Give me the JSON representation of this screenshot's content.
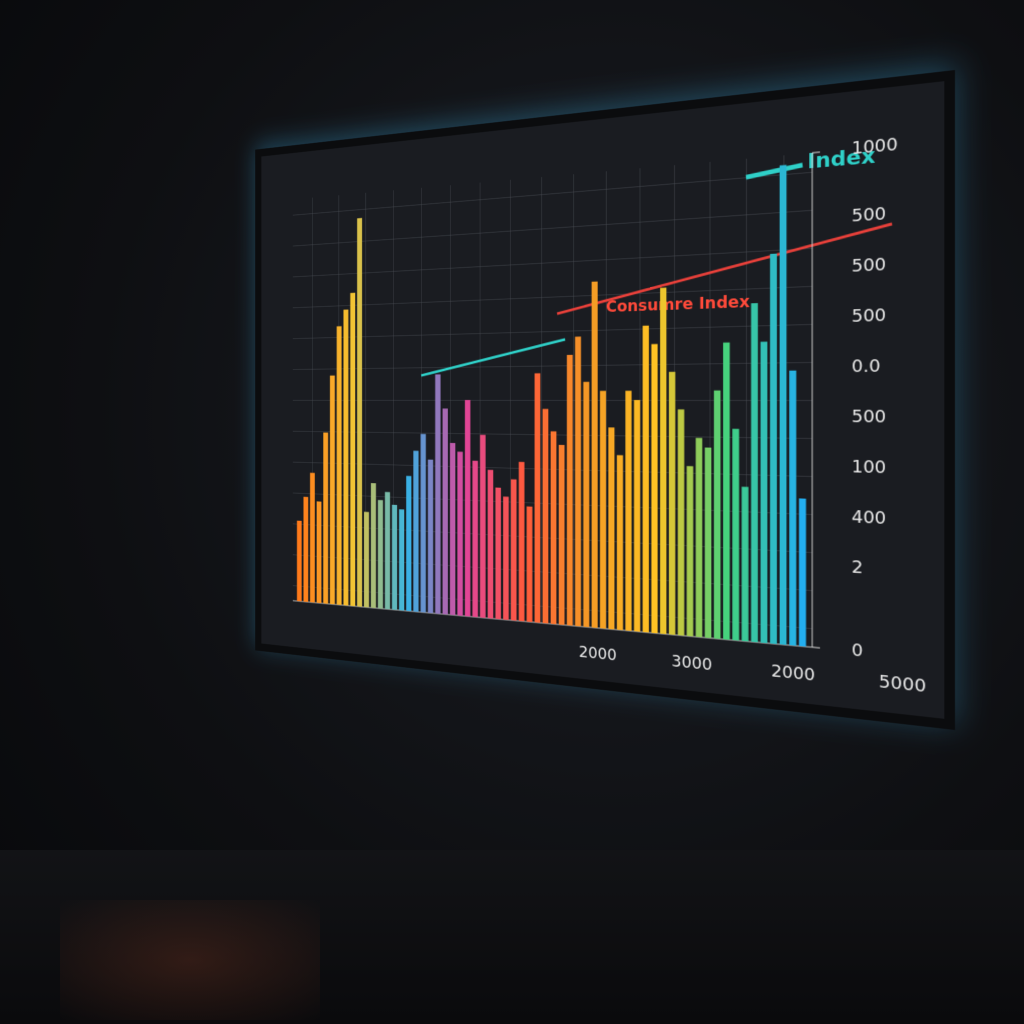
{
  "chart_data": {
    "type": "bar",
    "labels": [
      "Consumre Index",
      "Index"
    ],
    "categories": [
      null,
      null,
      null,
      null,
      null,
      null,
      null,
      null,
      null,
      null,
      null,
      null,
      null,
      null,
      null,
      null,
      null,
      null,
      null,
      null,
      null,
      null,
      null,
      null,
      null,
      null,
      null,
      null,
      null,
      null,
      null,
      null,
      null,
      null,
      null,
      null,
      null,
      null,
      null,
      null,
      null,
      null,
      null,
      null,
      null,
      null,
      null,
      null,
      null,
      null,
      null,
      null,
      null,
      null,
      null,
      null,
      null,
      null,
      null,
      null,
      null,
      null,
      null,
      null
    ],
    "values": [
      200,
      260,
      320,
      250,
      420,
      560,
      680,
      720,
      760,
      940,
      230,
      300,
      260,
      280,
      250,
      240,
      320,
      380,
      420,
      360,
      560,
      480,
      400,
      380,
      500,
      360,
      420,
      340,
      300,
      280,
      320,
      360,
      260,
      560,
      480,
      430,
      400,
      600,
      640,
      540,
      760,
      520,
      440,
      380,
      520,
      500,
      660,
      620,
      740,
      560,
      480,
      360,
      420,
      400,
      520,
      620,
      440,
      320,
      700,
      620,
      800,
      980,
      560,
      300
    ],
    "color_stops": [
      "#ff7a1a",
      "#f5c431",
      "#35b4e6",
      "#e0449a",
      "#ff5a3a",
      "#f39a25",
      "#ffc424",
      "#43d27e",
      "#23aef0"
    ],
    "ylim": [
      0,
      1000
    ],
    "yticks": [
      0,
      1000
    ],
    "axis_texts": [
      "500",
      "500",
      "500",
      "0.0",
      "500",
      "100",
      "400",
      "2"
    ],
    "x_texts": [
      "2000",
      "3000",
      "2000",
      "5000"
    ]
  }
}
